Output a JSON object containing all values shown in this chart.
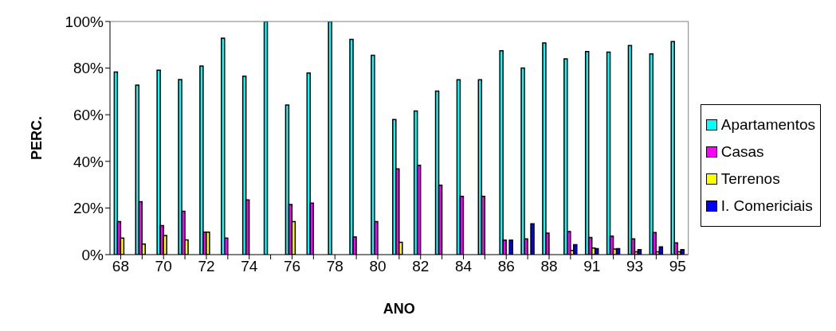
{
  "chart_data": {
    "type": "bar",
    "xlabel": "ANO",
    "ylabel": "PERC.",
    "categories": [
      "68",
      null,
      "70",
      null,
      "72",
      null,
      "74",
      null,
      "76",
      null,
      "78",
      null,
      "80",
      null,
      "82",
      null,
      "84",
      null,
      "86",
      null,
      "88",
      null,
      "91",
      null,
      "93",
      null,
      "95"
    ],
    "series": [
      {
        "name": "Apartamentos",
        "color": "#00ffff",
        "values": [
          78.3,
          72.7,
          79.1,
          75.1,
          80.9,
          92.8,
          76.5,
          100,
          64.2,
          77.9,
          100,
          92.3,
          85.5,
          57.9,
          61.6,
          70.1,
          75,
          75,
          87.5,
          80,
          90.8,
          84,
          87.1,
          86.9,
          89.7,
          86.1,
          91.4
        ]
      },
      {
        "name": "Casas",
        "color": "#ff00ff",
        "values": [
          14.2,
          22.7,
          12.5,
          18.6,
          9.6,
          7.1,
          23.5,
          null,
          21.5,
          22.1,
          null,
          7.6,
          14.2,
          36.8,
          38.3,
          29.8,
          25,
          25,
          6.2,
          6.7,
          9.2,
          9.9,
          7.3,
          7.9,
          6.7,
          9.5,
          5
        ]
      },
      {
        "name": "Terrenos",
        "color": "#ffff00",
        "values": [
          7.1,
          4.5,
          8.2,
          6.3,
          9.6,
          null,
          null,
          null,
          14.2,
          null,
          null,
          null,
          null,
          5.3,
          null,
          null,
          null,
          null,
          null,
          null,
          null,
          1.8,
          2.8,
          2.4,
          1.2,
          1.2,
          1.2
        ]
      },
      {
        "name": "I. Comericiais",
        "color": "#0000ff",
        "values": [
          null,
          null,
          null,
          null,
          null,
          null,
          null,
          null,
          null,
          null,
          null,
          null,
          null,
          null,
          null,
          null,
          null,
          null,
          6.2,
          13.2,
          null,
          4.3,
          2.6,
          2.6,
          2.1,
          3.3,
          2.1
        ]
      }
    ],
    "ylim": [
      0,
      100
    ],
    "yticks": [
      {
        "value": 0,
        "label": "0%"
      },
      {
        "value": 20,
        "label": "20%"
      },
      {
        "value": 40,
        "label": "40%"
      },
      {
        "value": 60,
        "label": "60%"
      },
      {
        "value": 80,
        "label": "80%"
      },
      {
        "value": 100,
        "label": "100%"
      }
    ],
    "grid": false,
    "legend": "right"
  }
}
